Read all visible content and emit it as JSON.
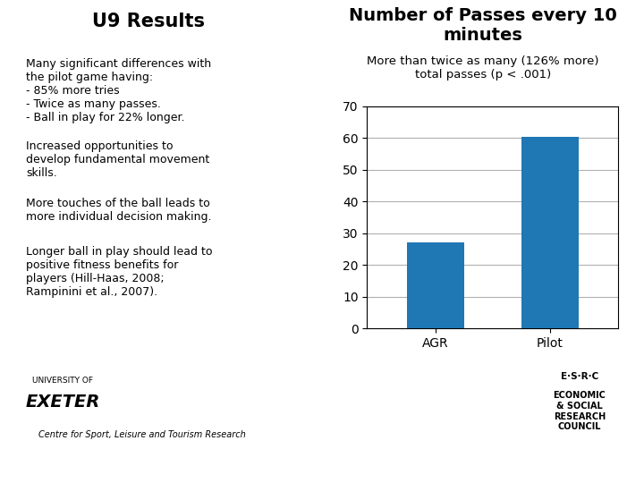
{
  "chart_data": {
    "type": "bar",
    "title": "Number of Passes every 10\nminutes",
    "subtitle": "More than twice as many (126% more)\ntotal passes (p < .001)",
    "categories": [
      "AGR",
      "Pilot"
    ],
    "values": [
      27,
      60.5
    ],
    "ylim": [
      0,
      70
    ],
    "yticks": [
      0,
      10,
      20,
      30,
      40,
      50,
      60,
      70
    ],
    "grid": true,
    "annotations": [
      "U9 Results",
      "Many significant differences with\nthe pilot game having:\n- 85% more tries\n- Twice as many passes.\n- Ball in play for 22% longer.",
      "Increased opportunities to\ndevelop fundamental movement\nskills.",
      "More touches of the ball leads to\nmore individual decision making.",
      "Longer ball in play should lead to\npositive fitness benefits for\nplayers (Hill-Haas, 2008;\nRampinini et al., 2007).",
      "UNIVERSITY OF",
      "EXETER",
      "Centre for Sport, Leisure and Tourism Research",
      "E·S·R·C",
      "ECONOMIC\n& SOCIAL\nRESEARCH\nCOUNCIL"
    ]
  }
}
